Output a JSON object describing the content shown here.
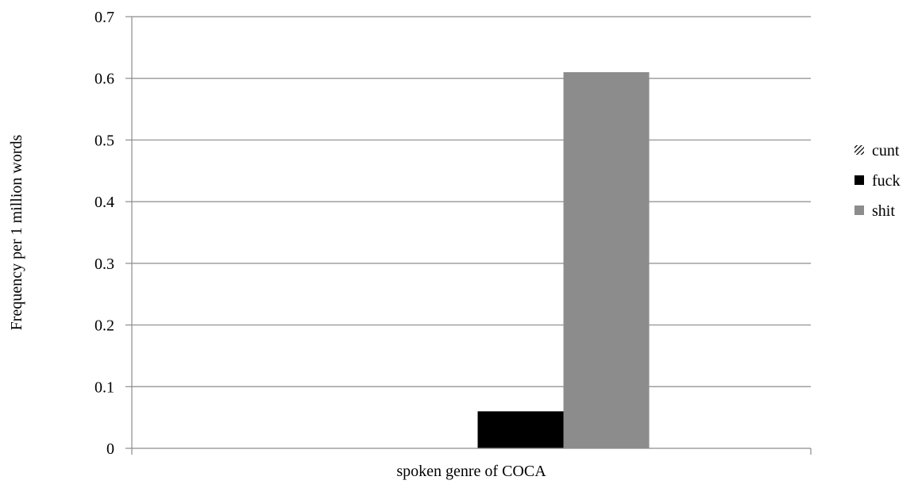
{
  "chart_data": {
    "type": "bar",
    "title": "",
    "xlabel": "spoken genre of COCA",
    "ylabel": "Frequency per 1 million words",
    "categories": [
      "spoken genre of COCA"
    ],
    "ylim": [
      0,
      0.7
    ],
    "yticks": [
      0,
      0.1,
      0.2,
      0.3,
      0.4,
      0.5,
      0.6,
      0.7
    ],
    "ytick_labels": [
      "0",
      "0.1",
      "0.2",
      "0.3",
      "0.4",
      "0.5",
      "0.6",
      "0.7"
    ],
    "grid": true,
    "legend_position": "right",
    "series": [
      {
        "name": "cunt",
        "values": [
          0
        ],
        "color": "#000000",
        "pattern": "diagonal-hatch"
      },
      {
        "name": "fuck",
        "values": [
          0.06
        ],
        "color": "#000000",
        "pattern": "solid"
      },
      {
        "name": "shit",
        "values": [
          0.61
        ],
        "color": "#8c8c8c",
        "pattern": "solid"
      }
    ]
  }
}
